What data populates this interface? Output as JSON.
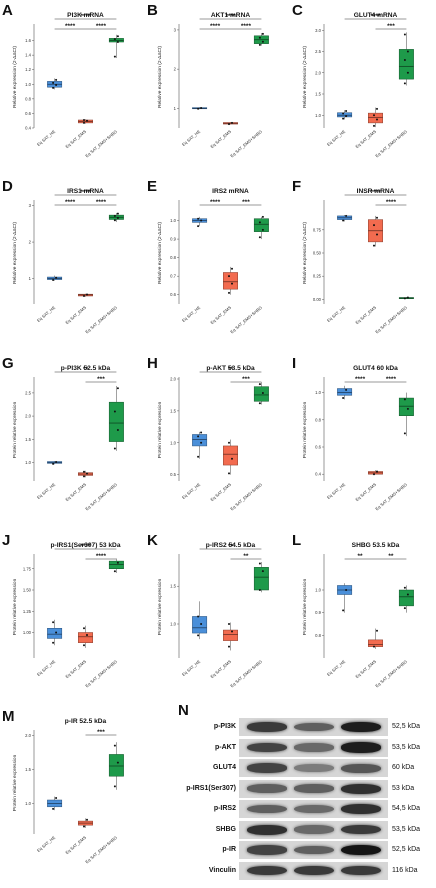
{
  "colors": {
    "HE": "#4a8fd9",
    "EMS": "#f26b4f",
    "EMS+SHBG": "#1e9a4a"
  },
  "x_labels": [
    "Eq SAT_HE",
    "Eq SAT_EMS",
    "Eq SAT_EMS+SHBG"
  ],
  "chart_data": [
    {
      "letter": "A",
      "type": "box",
      "title": "PI3K mRNA",
      "ylabel": "Relative expression (2-ΔΔCt)",
      "ylim": [
        0.4,
        1.8
      ],
      "yticks": [
        "0.4",
        "0.6",
        "0.8",
        "1.0",
        "1.2",
        "1.4",
        "1.6"
      ],
      "ytick_values": [
        0.4,
        0.6,
        0.8,
        1.0,
        1.2,
        1.4,
        1.6
      ],
      "boxes": [
        {
          "q1": 0.96,
          "median": 1.0,
          "q3": 1.04,
          "min": 0.93,
          "max": 1.08,
          "points": [
            0.95,
            0.99,
            1.02,
            1.06
          ]
        },
        {
          "q1": 0.47,
          "median": 0.49,
          "q3": 0.51,
          "min": 0.46,
          "max": 0.52,
          "points": [
            0.47,
            0.5,
            0.51
          ]
        },
        {
          "q1": 1.58,
          "median": 1.6,
          "q3": 1.63,
          "min": 1.36,
          "max": 1.68,
          "points": [
            1.38,
            1.58,
            1.62,
            1.66
          ]
        }
      ],
      "brackets": [
        {
          "from": 0,
          "to": 1,
          "label": "****",
          "level": 0
        },
        {
          "from": 1,
          "to": 2,
          "label": "****",
          "level": 0
        },
        {
          "from": 0,
          "to": 2,
          "label": "****",
          "level": 1
        }
      ]
    },
    {
      "letter": "B",
      "type": "box",
      "title": "AKT1 mRNA",
      "ylabel": "Relative expression (2-ΔΔCt)",
      "ylim": [
        0.5,
        3.1
      ],
      "yticks": [
        "1",
        "2",
        "3"
      ],
      "ytick_values": [
        1,
        2,
        3
      ],
      "boxes": [
        {
          "q1": 0.99,
          "median": 1.0,
          "q3": 1.02,
          "min": 0.98,
          "max": 1.03,
          "points": [
            0.99,
            1.01
          ]
        },
        {
          "q1": 0.6,
          "median": 0.62,
          "q3": 0.64,
          "min": 0.59,
          "max": 0.65,
          "points": [
            0.6,
            0.63
          ]
        },
        {
          "q1": 2.65,
          "median": 2.75,
          "q3": 2.85,
          "min": 2.6,
          "max": 2.92,
          "points": [
            2.62,
            2.7,
            2.8,
            2.9
          ]
        }
      ],
      "brackets": [
        {
          "from": 0,
          "to": 1,
          "label": "****",
          "level": 0
        },
        {
          "from": 1,
          "to": 2,
          "label": "****",
          "level": 0
        },
        {
          "from": 0,
          "to": 2,
          "label": "****",
          "level": 1
        }
      ]
    },
    {
      "letter": "C",
      "type": "box",
      "title": "GLUT4 mRNA",
      "ylabel": "Relative expression (2-ΔΔCt)",
      "ylim": [
        0.7,
        3.1
      ],
      "yticks": [
        "1.0",
        "1.5",
        "2.0",
        "2.5",
        "3.0"
      ],
      "ytick_values": [
        1.0,
        1.5,
        2.0,
        2.5,
        3.0
      ],
      "boxes": [
        {
          "q1": 0.96,
          "median": 1.0,
          "q3": 1.06,
          "min": 0.9,
          "max": 1.12,
          "points": [
            0.92,
            0.98,
            1.04,
            1.1
          ]
        },
        {
          "q1": 0.82,
          "median": 0.95,
          "q3": 1.05,
          "min": 0.72,
          "max": 1.18,
          "points": [
            0.75,
            0.9,
            1.0,
            1.15
          ]
        },
        {
          "q1": 1.85,
          "median": 2.15,
          "q3": 2.55,
          "min": 1.7,
          "max": 2.95,
          "points": [
            1.75,
            2.0,
            2.3,
            2.5,
            2.9
          ]
        }
      ],
      "brackets": [
        {
          "from": 1,
          "to": 2,
          "label": "***",
          "level": 0
        },
        {
          "from": 0,
          "to": 2,
          "label": "****",
          "level": 1
        }
      ]
    },
    {
      "letter": "D",
      "type": "box",
      "title": "IRS1 mRNA",
      "ylabel": "Relative expression (2-ΔΔCt)",
      "ylim": [
        0.3,
        3.1
      ],
      "yticks": [
        "1",
        "2",
        "3"
      ],
      "ytick_values": [
        1,
        2,
        3
      ],
      "boxes": [
        {
          "q1": 0.97,
          "median": 1.0,
          "q3": 1.04,
          "min": 0.94,
          "max": 1.08,
          "points": [
            0.96,
            1.02
          ]
        },
        {
          "q1": 0.52,
          "median": 0.55,
          "q3": 0.57,
          "min": 0.5,
          "max": 0.58,
          "points": [
            0.52,
            0.56
          ]
        },
        {
          "q1": 2.62,
          "median": 2.68,
          "q3": 2.74,
          "min": 2.55,
          "max": 2.8,
          "points": [
            2.6,
            2.66,
            2.72,
            2.78
          ]
        }
      ],
      "brackets": [
        {
          "from": 0,
          "to": 1,
          "label": "****",
          "level": 0
        },
        {
          "from": 1,
          "to": 2,
          "label": "****",
          "level": 0
        },
        {
          "from": 0,
          "to": 2,
          "label": "****",
          "level": 1
        }
      ]
    },
    {
      "letter": "E",
      "type": "box",
      "title": "IRS2 mRNA",
      "ylabel": "Relative expression (2-ΔΔCt)",
      "ylim": [
        0.55,
        1.1
      ],
      "yticks": [
        "0.6",
        "0.7",
        "0.8",
        "0.9",
        "1.0"
      ],
      "ytick_values": [
        0.6,
        0.7,
        0.8,
        0.9,
        1.0
      ],
      "boxes": [
        {
          "q1": 0.99,
          "median": 1.0,
          "q3": 1.01,
          "min": 0.97,
          "max": 1.02,
          "points": [
            0.97,
            1.0,
            1.01
          ]
        },
        {
          "q1": 0.63,
          "median": 0.67,
          "q3": 0.72,
          "min": 0.6,
          "max": 0.75,
          "points": [
            0.61,
            0.66,
            0.7,
            0.74
          ]
        },
        {
          "q1": 0.94,
          "median": 0.98,
          "q3": 1.01,
          "min": 0.9,
          "max": 1.02,
          "points": [
            0.91,
            0.95,
            0.99,
            1.02
          ]
        }
      ],
      "brackets": [
        {
          "from": 0,
          "to": 1,
          "label": "****",
          "level": 0
        },
        {
          "from": 1,
          "to": 2,
          "label": "***",
          "level": 0
        }
      ]
    },
    {
      "letter": "F",
      "type": "box",
      "title": "INSR mRNA",
      "ylabel": "Relative expression (2-ΔΔCt)",
      "ylim": [
        -0.05,
        1.05
      ],
      "yticks": [
        "0.00",
        "0.25",
        "0.50",
        "0.75"
      ],
      "ytick_values": [
        0.0,
        0.25,
        0.5,
        0.75
      ],
      "boxes": [
        {
          "q1": 0.86,
          "median": 0.88,
          "q3": 0.9,
          "min": 0.84,
          "max": 0.91,
          "points": [
            0.85,
            0.9
          ]
        },
        {
          "q1": 0.62,
          "median": 0.74,
          "q3": 0.86,
          "min": 0.57,
          "max": 0.9,
          "points": [
            0.58,
            0.7,
            0.8,
            0.88
          ]
        },
        {
          "q1": 0.01,
          "median": 0.015,
          "q3": 0.02,
          "min": 0.005,
          "max": 0.025,
          "points": [
            0.01,
            0.02
          ]
        }
      ],
      "brackets": [
        {
          "from": 1,
          "to": 2,
          "label": "****",
          "level": 0
        },
        {
          "from": 0,
          "to": 2,
          "label": "****",
          "level": 1
        }
      ]
    },
    {
      "letter": "G",
      "type": "box",
      "title": "p-PI3K 52.5 kDa",
      "ylabel": "Protein relative expression",
      "ylim": [
        0.6,
        2.8
      ],
      "yticks": [
        "1.0",
        "1.5",
        "2.0",
        "2.5"
      ],
      "ytick_values": [
        1.0,
        1.5,
        2.0,
        2.5
      ],
      "boxes": [
        {
          "q1": 0.98,
          "median": 1.0,
          "q3": 1.02,
          "min": 0.96,
          "max": 1.03,
          "points": [
            0.97,
            1.01
          ]
        },
        {
          "q1": 0.72,
          "median": 0.75,
          "q3": 0.78,
          "min": 0.68,
          "max": 0.82,
          "points": [
            0.7,
            0.76,
            0.8
          ]
        },
        {
          "q1": 1.45,
          "median": 1.85,
          "q3": 2.3,
          "min": 1.25,
          "max": 2.65,
          "points": [
            1.3,
            1.7,
            2.1,
            2.6
          ]
        }
      ],
      "brackets": [
        {
          "from": 1,
          "to": 2,
          "label": "***",
          "level": 0
        },
        {
          "from": 0,
          "to": 2,
          "label": "**",
          "level": 1
        }
      ]
    },
    {
      "letter": "H",
      "type": "box",
      "title": "p-AKT 53.5 kDa",
      "ylabel": "Protein relative expression",
      "ylim": [
        0.4,
        2.0
      ],
      "yticks": [
        "0.5",
        "1.0",
        "1.5",
        "2.0"
      ],
      "ytick_values": [
        0.5,
        1.0,
        1.5,
        2.0
      ],
      "boxes": [
        {
          "q1": 0.95,
          "median": 1.05,
          "q3": 1.13,
          "min": 0.75,
          "max": 1.17,
          "points": [
            0.78,
            1.0,
            1.1,
            1.16
          ]
        },
        {
          "q1": 0.65,
          "median": 0.82,
          "q3": 0.95,
          "min": 0.5,
          "max": 1.05,
          "points": [
            0.52,
            0.75,
            1.0
          ]
        },
        {
          "q1": 1.65,
          "median": 1.75,
          "q3": 1.88,
          "min": 1.6,
          "max": 1.95,
          "points": [
            1.62,
            1.78,
            1.92
          ]
        }
      ],
      "brackets": [
        {
          "from": 1,
          "to": 2,
          "label": "***",
          "level": 0
        },
        {
          "from": 0,
          "to": 2,
          "label": "**",
          "level": 1
        }
      ]
    },
    {
      "letter": "I",
      "type": "box",
      "title": "GLUT4 60 kDa",
      "ylabel": "Protein relative expression",
      "ylim": [
        0.35,
        1.1
      ],
      "yticks": [
        "0.4",
        "0.6",
        "0.8",
        "1.0"
      ],
      "ytick_values": [
        0.4,
        0.6,
        0.8,
        1.0
      ],
      "boxes": [
        {
          "q1": 0.98,
          "median": 1.0,
          "q3": 1.03,
          "min": 0.95,
          "max": 1.05,
          "points": [
            0.96,
            1.02
          ]
        },
        {
          "q1": 0.4,
          "median": 0.41,
          "q3": 0.42,
          "min": 0.4,
          "max": 0.43,
          "points": [
            0.4,
            0.42
          ]
        },
        {
          "q1": 0.83,
          "median": 0.9,
          "q3": 0.96,
          "min": 0.68,
          "max": 1.0,
          "points": [
            0.7,
            0.88,
            0.95
          ]
        }
      ],
      "brackets": [
        {
          "from": 0,
          "to": 1,
          "label": "****",
          "level": 0
        },
        {
          "from": 1,
          "to": 2,
          "label": "****",
          "level": 0
        }
      ]
    },
    {
      "letter": "J",
      "type": "box",
      "title": "p-IRS1(Ser307) 53 kDa",
      "ylabel": "Protein relative expression",
      "ylim": [
        0.7,
        1.9
      ],
      "yticks": [
        "1.00",
        "1.25",
        "1.50",
        "1.75"
      ],
      "ytick_values": [
        1.0,
        1.25,
        1.5,
        1.75
      ],
      "boxes": [
        {
          "q1": 0.93,
          "median": 0.98,
          "q3": 1.05,
          "min": 0.85,
          "max": 1.15,
          "points": [
            0.88,
            1.0,
            1.12
          ]
        },
        {
          "q1": 0.88,
          "median": 0.95,
          "q3": 1.0,
          "min": 0.82,
          "max": 1.08,
          "points": [
            0.85,
            0.97,
            1.05
          ]
        },
        {
          "q1": 1.75,
          "median": 1.8,
          "q3": 1.84,
          "min": 1.7,
          "max": 1.87,
          "points": [
            1.72,
            1.82
          ]
        }
      ],
      "brackets": [
        {
          "from": 1,
          "to": 2,
          "label": "****",
          "level": 0
        },
        {
          "from": 0,
          "to": 2,
          "label": "****",
          "level": 1
        }
      ]
    },
    {
      "letter": "K",
      "type": "box",
      "title": "p-IRS2 54.5 kDa",
      "ylabel": "Protein relative expression",
      "ylim": [
        0.55,
        1.9
      ],
      "yticks": [
        "1.0",
        "1.5"
      ],
      "ytick_values": [
        1.0,
        1.5
      ],
      "boxes": [
        {
          "q1": 0.88,
          "median": 0.95,
          "q3": 1.1,
          "min": 0.8,
          "max": 1.3,
          "points": [
            0.85,
            1.0,
            1.1
          ]
        },
        {
          "q1": 0.78,
          "median": 0.86,
          "q3": 0.92,
          "min": 0.65,
          "max": 1.02,
          "points": [
            0.7,
            0.9,
            1.0
          ]
        },
        {
          "q1": 1.45,
          "median": 1.62,
          "q3": 1.75,
          "min": 1.42,
          "max": 1.82,
          "points": [
            1.45,
            1.7,
            1.8
          ]
        }
      ],
      "brackets": [
        {
          "from": 1,
          "to": 2,
          "label": "**",
          "level": 0
        },
        {
          "from": 0,
          "to": 2,
          "label": "**",
          "level": 1
        }
      ]
    },
    {
      "letter": "L",
      "type": "box",
      "title": "SHBG 53.5 kDa",
      "ylabel": "Protein relative expression",
      "ylim": [
        0.7,
        1.15
      ],
      "yticks": [
        "0.8",
        "0.9",
        "1.0"
      ],
      "ytick_values": [
        0.8,
        0.9,
        1.0
      ],
      "boxes": [
        {
          "q1": 0.98,
          "median": 1.0,
          "q3": 1.02,
          "min": 0.9,
          "max": 1.03,
          "points": [
            0.91,
            1.0
          ]
        },
        {
          "q1": 0.75,
          "median": 0.76,
          "q3": 0.78,
          "min": 0.74,
          "max": 0.83,
          "points": [
            0.75,
            0.82
          ]
        },
        {
          "q1": 0.93,
          "median": 0.97,
          "q3": 1.0,
          "min": 0.9,
          "max": 1.02,
          "points": [
            0.92,
            0.98,
            1.01
          ]
        }
      ],
      "brackets": [
        {
          "from": 0,
          "to": 1,
          "label": "**",
          "level": 0
        },
        {
          "from": 1,
          "to": 2,
          "label": "**",
          "level": 0
        }
      ]
    },
    {
      "letter": "M",
      "type": "box",
      "title": "p-IR 52.5 kDa",
      "ylabel": "Protein relative expression",
      "ylim": [
        0.55,
        2.05
      ],
      "yticks": [
        "1.0",
        "1.5",
        "2.0"
      ],
      "ytick_values": [
        1.0,
        1.5,
        2.0
      ],
      "boxes": [
        {
          "q1": 0.95,
          "median": 1.0,
          "q3": 1.05,
          "min": 0.9,
          "max": 1.1,
          "points": [
            0.92,
            1.08
          ]
        },
        {
          "q1": 0.68,
          "median": 0.71,
          "q3": 0.74,
          "min": 0.64,
          "max": 0.78,
          "points": [
            0.66,
            0.76
          ]
        },
        {
          "q1": 1.4,
          "median": 1.55,
          "q3": 1.72,
          "min": 1.2,
          "max": 1.9,
          "points": [
            1.25,
            1.6,
            1.85
          ]
        }
      ],
      "brackets": [
        {
          "from": 1,
          "to": 2,
          "label": "***",
          "level": 0
        }
      ]
    }
  ],
  "blot": {
    "letter": "N",
    "rows": [
      {
        "label": "p-PI3K",
        "mw": "52,5 kDa",
        "intensity": [
          0.75,
          0.55,
          0.9
        ]
      },
      {
        "label": "p-AKT",
        "mw": "53,5 kDa",
        "intensity": [
          0.7,
          0.5,
          0.9
        ]
      },
      {
        "label": "GLUT4",
        "mw": "60 kDa",
        "intensity": [
          0.7,
          0.4,
          0.6
        ]
      },
      {
        "label": "p-IRS1(Ser307)",
        "mw": "53 kDa",
        "intensity": [
          0.55,
          0.55,
          0.8
        ]
      },
      {
        "label": "p-IRS2",
        "mw": "54,5 kDa",
        "intensity": [
          0.55,
          0.5,
          0.8
        ]
      },
      {
        "label": "SHBG",
        "mw": "53,5 kDa",
        "intensity": [
          0.8,
          0.5,
          0.75
        ]
      },
      {
        "label": "p-IR",
        "mw": "52,5 kDa",
        "intensity": [
          0.7,
          0.55,
          0.95
        ]
      },
      {
        "label": "Vinculin",
        "mw": "116 kDa",
        "intensity": [
          0.75,
          0.75,
          0.75
        ]
      }
    ]
  }
}
